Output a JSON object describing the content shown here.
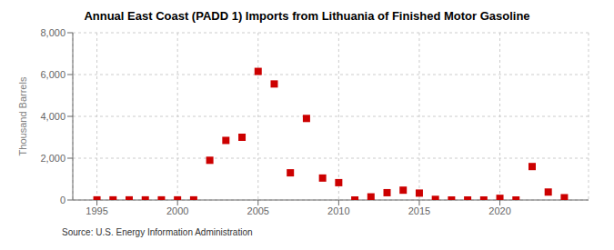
{
  "chart_data": {
    "type": "scatter",
    "title": "Annual East Coast (PADD 1) Imports from Lithuania of Finished Motor Gasoline",
    "y_label": "Thousand Barrels",
    "annotations": [
      "Source: U.S. Energy Information Administration"
    ],
    "x": [
      1995,
      1996,
      1997,
      1998,
      1999,
      2000,
      2001,
      2002,
      2003,
      2004,
      2005,
      2006,
      2007,
      2008,
      2009,
      2010,
      2011,
      2012,
      2013,
      2014,
      2015,
      2016,
      2017,
      2018,
      2019,
      2020,
      2021,
      2022,
      2023,
      2024
    ],
    "values": [
      5,
      5,
      5,
      5,
      5,
      5,
      5,
      1900,
      2850,
      3000,
      6150,
      5550,
      1300,
      3900,
      1050,
      830,
      0,
      150,
      350,
      470,
      330,
      30,
      0,
      0,
      0,
      80,
      0,
      1600,
      380,
      110
    ],
    "color": "#cc0000",
    "marker": "square",
    "xlim": [
      1993.5,
      2025.5
    ],
    "ylim": [
      0,
      8000
    ],
    "xticks": [
      1995,
      2000,
      2005,
      2010,
      2015,
      2020
    ],
    "yticks": [
      0,
      {
        "value": 2000,
        "label": "2,000"
      },
      {
        "value": 4000,
        "label": "4,000"
      },
      {
        "value": 6000,
        "label": "6,000"
      },
      {
        "value": 8000,
        "label": "8,000"
      }
    ],
    "grid": true
  }
}
